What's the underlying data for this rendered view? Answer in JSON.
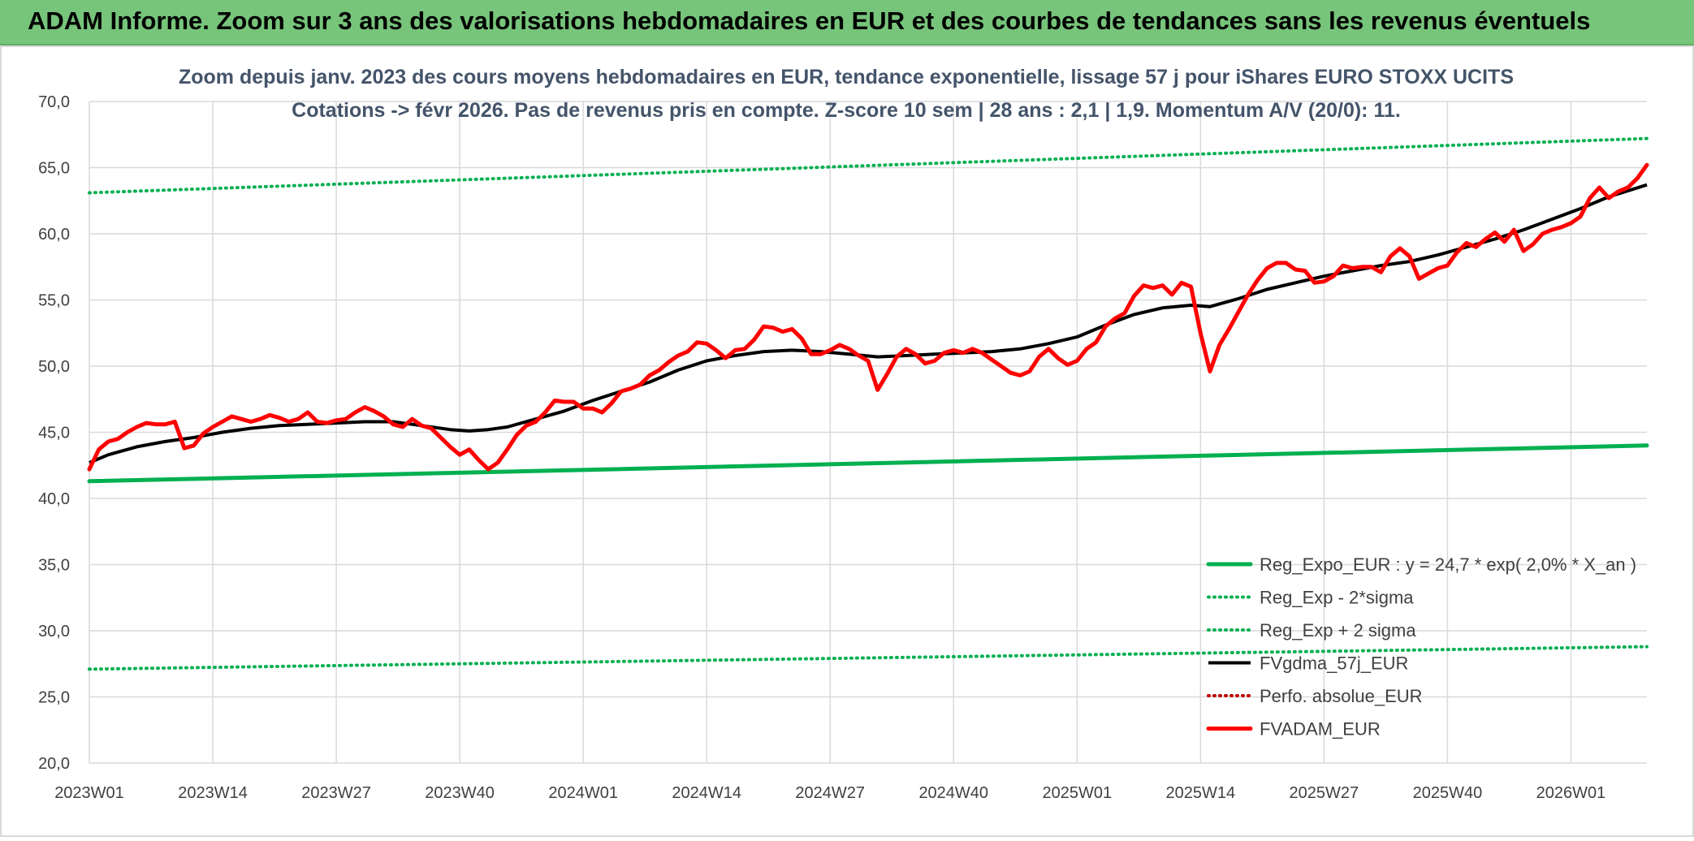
{
  "banner": {
    "title": "ADAM Informe. Zoom sur 3 ans des valorisations hebdomadaires en EUR et des courbes de tendances sans les revenus éventuels"
  },
  "colors": {
    "banner": "#77c47b",
    "reg_expo": "#00b050",
    "fvgdma": "#000000",
    "perfo": "#c00000",
    "fvadam": "#ff0000",
    "grid": "#d9d9d9",
    "axis_text": "#404040",
    "title_text": "#44546a"
  },
  "chart_data": {
    "type": "line",
    "title": "Zoom depuis janv. 2023 des cours moyens hebdomadaires en EUR, tendance exponentielle, lissage 57 j pour iShares EURO STOXX UCITS",
    "subtitle": "Cotations -> févr 2026. Pas de revenus pris en compte. Z-score 10 sem | 28 ans : 2,1 | 1,9. Momentum A/V (20/0): 11.",
    "xlabel": "",
    "ylabel": "",
    "ylim": [
      20,
      70
    ],
    "yticks": [
      "20,0",
      "25,0",
      "30,0",
      "35,0",
      "40,0",
      "45,0",
      "50,0",
      "55,0",
      "60,0",
      "65,0",
      "70,0"
    ],
    "xlim": [
      0,
      164
    ],
    "xticks": [
      {
        "x": 0,
        "label": "2023W01"
      },
      {
        "x": 13,
        "label": "2023W14"
      },
      {
        "x": 26,
        "label": "2023W27"
      },
      {
        "x": 39,
        "label": "2023W40"
      },
      {
        "x": 52,
        "label": "2024W01"
      },
      {
        "x": 65,
        "label": "2024W14"
      },
      {
        "x": 78,
        "label": "2024W27"
      },
      {
        "x": 91,
        "label": "2024W40"
      },
      {
        "x": 104,
        "label": "2025W01"
      },
      {
        "x": 117,
        "label": "2025W14"
      },
      {
        "x": 130,
        "label": "2025W27"
      },
      {
        "x": 143,
        "label": "2025W40"
      },
      {
        "x": 156,
        "label": "2026W01"
      }
    ],
    "grid": true,
    "legend_position": "bottom-right",
    "series": [
      {
        "name": "Reg_Expo_EUR : y = 24,7 * exp( 2,0% *  X_an )",
        "style": "solid-thick",
        "color": "#00b050",
        "points": [
          [
            0,
            41.3
          ],
          [
            164,
            44.0
          ]
        ]
      },
      {
        "name": "Reg_Exp - 2*sigma",
        "style": "dotted",
        "color": "#00b050",
        "points": [
          [
            0,
            27.1
          ],
          [
            164,
            28.8
          ]
        ]
      },
      {
        "name": "Reg_Exp + 2 sigma",
        "style": "dotted",
        "color": "#00b050",
        "points": [
          [
            0,
            63.1
          ],
          [
            164,
            67.2
          ]
        ]
      },
      {
        "name": "FVgdma_57j_EUR",
        "style": "solid",
        "color": "#000000",
        "points": [
          [
            0,
            42.7
          ],
          [
            2,
            43.3
          ],
          [
            5,
            43.9
          ],
          [
            8,
            44.3
          ],
          [
            11,
            44.6
          ],
          [
            14,
            45.0
          ],
          [
            17,
            45.3
          ],
          [
            20,
            45.5
          ],
          [
            23,
            45.6
          ],
          [
            26,
            45.7
          ],
          [
            29,
            45.8
          ],
          [
            32,
            45.8
          ],
          [
            35,
            45.5
          ],
          [
            38,
            45.2
          ],
          [
            40,
            45.1
          ],
          [
            42,
            45.2
          ],
          [
            44,
            45.4
          ],
          [
            47,
            46.0
          ],
          [
            50,
            46.6
          ],
          [
            53,
            47.4
          ],
          [
            56,
            48.1
          ],
          [
            59,
            48.8
          ],
          [
            62,
            49.7
          ],
          [
            65,
            50.4
          ],
          [
            68,
            50.8
          ],
          [
            71,
            51.1
          ],
          [
            74,
            51.2
          ],
          [
            77,
            51.1
          ],
          [
            80,
            50.9
          ],
          [
            83,
            50.7
          ],
          [
            86,
            50.8
          ],
          [
            89,
            50.9
          ],
          [
            92,
            51.0
          ],
          [
            95,
            51.1
          ],
          [
            98,
            51.3
          ],
          [
            101,
            51.7
          ],
          [
            104,
            52.2
          ],
          [
            107,
            53.1
          ],
          [
            110,
            53.9
          ],
          [
            113,
            54.4
          ],
          [
            116,
            54.6
          ],
          [
            118,
            54.5
          ],
          [
            121,
            55.1
          ],
          [
            124,
            55.8
          ],
          [
            127,
            56.3
          ],
          [
            130,
            56.8
          ],
          [
            133,
            57.2
          ],
          [
            136,
            57.6
          ],
          [
            139,
            57.9
          ],
          [
            142,
            58.4
          ],
          [
            145,
            59.0
          ],
          [
            148,
            59.6
          ],
          [
            151,
            60.3
          ],
          [
            154,
            61.1
          ],
          [
            157,
            61.9
          ],
          [
            160,
            62.8
          ],
          [
            164,
            63.7
          ]
        ]
      },
      {
        "name": "Perfo. absolue_EUR",
        "style": "dotted",
        "color": "#c00000",
        "points": []
      },
      {
        "name": "FVADAM_EUR",
        "style": "solid-thick",
        "color": "#ff0000",
        "points": [
          [
            0,
            42.2
          ],
          [
            1,
            43.7
          ],
          [
            2,
            44.3
          ],
          [
            3,
            44.5
          ],
          [
            4,
            45.0
          ],
          [
            5,
            45.4
          ],
          [
            6,
            45.7
          ],
          [
            7,
            45.6
          ],
          [
            8,
            45.6
          ],
          [
            9,
            45.8
          ],
          [
            10,
            43.8
          ],
          [
            11,
            44.0
          ],
          [
            12,
            44.9
          ],
          [
            13,
            45.4
          ],
          [
            14,
            45.8
          ],
          [
            15,
            46.2
          ],
          [
            16,
            46.0
          ],
          [
            17,
            45.8
          ],
          [
            18,
            46.0
          ],
          [
            19,
            46.3
          ],
          [
            20,
            46.1
          ],
          [
            21,
            45.8
          ],
          [
            22,
            46.0
          ],
          [
            23,
            46.5
          ],
          [
            24,
            45.8
          ],
          [
            25,
            45.7
          ],
          [
            26,
            45.9
          ],
          [
            27,
            46.0
          ],
          [
            28,
            46.5
          ],
          [
            29,
            46.9
          ],
          [
            30,
            46.6
          ],
          [
            31,
            46.2
          ],
          [
            32,
            45.6
          ],
          [
            33,
            45.4
          ],
          [
            34,
            46.0
          ],
          [
            35,
            45.5
          ],
          [
            36,
            45.3
          ],
          [
            37,
            44.6
          ],
          [
            38,
            43.9
          ],
          [
            39,
            43.3
          ],
          [
            40,
            43.7
          ],
          [
            41,
            42.9
          ],
          [
            42,
            42.2
          ],
          [
            43,
            42.7
          ],
          [
            44,
            43.7
          ],
          [
            45,
            44.8
          ],
          [
            46,
            45.5
          ],
          [
            47,
            45.8
          ],
          [
            48,
            46.5
          ],
          [
            49,
            47.4
          ],
          [
            50,
            47.3
          ],
          [
            51,
            47.3
          ],
          [
            52,
            46.8
          ],
          [
            53,
            46.8
          ],
          [
            54,
            46.5
          ],
          [
            55,
            47.2
          ],
          [
            56,
            48.1
          ],
          [
            57,
            48.3
          ],
          [
            58,
            48.6
          ],
          [
            59,
            49.3
          ],
          [
            60,
            49.7
          ],
          [
            61,
            50.3
          ],
          [
            62,
            50.8
          ],
          [
            63,
            51.1
          ],
          [
            64,
            51.8
          ],
          [
            65,
            51.7
          ],
          [
            66,
            51.2
          ],
          [
            67,
            50.6
          ],
          [
            68,
            51.2
          ],
          [
            69,
            51.3
          ],
          [
            70,
            52.0
          ],
          [
            71,
            53.0
          ],
          [
            72,
            52.9
          ],
          [
            73,
            52.6
          ],
          [
            74,
            52.8
          ],
          [
            75,
            52.1
          ],
          [
            76,
            50.9
          ],
          [
            77,
            50.9
          ],
          [
            78,
            51.2
          ],
          [
            79,
            51.6
          ],
          [
            80,
            51.3
          ],
          [
            81,
            50.8
          ],
          [
            82,
            50.4
          ],
          [
            83,
            48.2
          ],
          [
            84,
            49.4
          ],
          [
            85,
            50.7
          ],
          [
            86,
            51.3
          ],
          [
            87,
            50.9
          ],
          [
            88,
            50.2
          ],
          [
            89,
            50.4
          ],
          [
            90,
            51.0
          ],
          [
            91,
            51.2
          ],
          [
            92,
            51.0
          ],
          [
            93,
            51.3
          ],
          [
            94,
            51.0
          ],
          [
            95,
            50.5
          ],
          [
            96,
            50.0
          ],
          [
            97,
            49.5
          ],
          [
            98,
            49.3
          ],
          [
            99,
            49.6
          ],
          [
            100,
            50.7
          ],
          [
            101,
            51.3
          ],
          [
            102,
            50.6
          ],
          [
            103,
            50.1
          ],
          [
            104,
            50.4
          ],
          [
            105,
            51.3
          ],
          [
            106,
            51.8
          ],
          [
            107,
            53.0
          ],
          [
            108,
            53.6
          ],
          [
            109,
            54.0
          ],
          [
            110,
            55.3
          ],
          [
            111,
            56.1
          ],
          [
            112,
            55.9
          ],
          [
            113,
            56.1
          ],
          [
            114,
            55.4
          ],
          [
            115,
            56.3
          ],
          [
            116,
            56.0
          ],
          [
            117,
            52.5
          ],
          [
            118,
            49.6
          ],
          [
            119,
            51.6
          ],
          [
            120,
            52.8
          ],
          [
            121,
            54.1
          ],
          [
            122,
            55.4
          ],
          [
            123,
            56.5
          ],
          [
            124,
            57.4
          ],
          [
            125,
            57.8
          ],
          [
            126,
            57.8
          ],
          [
            127,
            57.3
          ],
          [
            128,
            57.2
          ],
          [
            129,
            56.3
          ],
          [
            130,
            56.4
          ],
          [
            131,
            56.8
          ],
          [
            132,
            57.6
          ],
          [
            133,
            57.4
          ],
          [
            134,
            57.5
          ],
          [
            135,
            57.5
          ],
          [
            136,
            57.1
          ],
          [
            137,
            58.3
          ],
          [
            138,
            58.9
          ],
          [
            139,
            58.3
          ],
          [
            140,
            56.6
          ],
          [
            141,
            57.0
          ],
          [
            142,
            57.4
          ],
          [
            143,
            57.6
          ],
          [
            144,
            58.6
          ],
          [
            145,
            59.3
          ],
          [
            146,
            59.0
          ],
          [
            147,
            59.6
          ],
          [
            148,
            60.1
          ],
          [
            149,
            59.4
          ],
          [
            150,
            60.3
          ],
          [
            151,
            58.7
          ],
          [
            152,
            59.2
          ],
          [
            153,
            60.0
          ],
          [
            154,
            60.3
          ],
          [
            155,
            60.5
          ],
          [
            156,
            60.8
          ],
          [
            157,
            61.3
          ],
          [
            158,
            62.7
          ],
          [
            159,
            63.5
          ],
          [
            160,
            62.7
          ],
          [
            161,
            63.2
          ],
          [
            162,
            63.5
          ],
          [
            163,
            64.2
          ],
          [
            164,
            65.2
          ]
        ]
      }
    ]
  }
}
